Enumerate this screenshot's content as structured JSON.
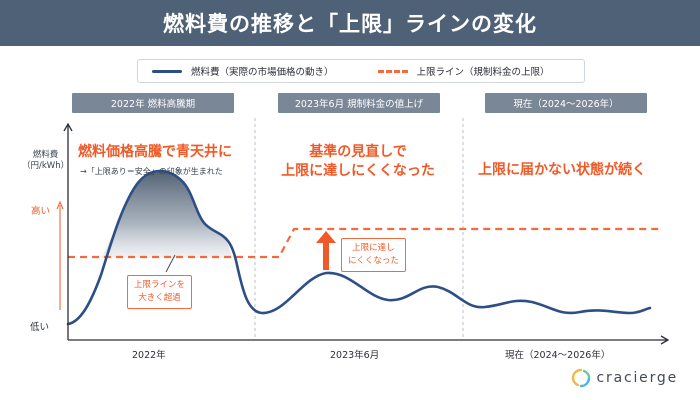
{
  "title": "燃料費の推移と「上限」ラインの変化",
  "legend": {
    "fuel": "燃料費（実際の市場価格の動き）",
    "cap": "上限ライン（規制料金の上限）"
  },
  "periods": [
    {
      "label": "2022年 燃料高騰期"
    },
    {
      "label": "2023年6月 規制料金の値上げ"
    },
    {
      "label": "現在（2024〜2026年）"
    }
  ],
  "headlines": {
    "first": "燃料価格高騰で青天井に",
    "first_note": "→「上限あり＝安全」の印象が生まれた",
    "second_line1": "基準の見直しで",
    "second_line2": "上限に達しにくくなった",
    "third": "上限に届かない状態が続く"
  },
  "y_axis": {
    "label_line1": "燃料費",
    "label_line2": "（円/kWh）",
    "high": "高い",
    "low": "低い"
  },
  "x_axis": {
    "tick1": "2022年",
    "tick2": "2023年6月",
    "tick3": "現在（2024〜2026年）"
  },
  "callouts": {
    "exceed_line1": "上限ラインを",
    "exceed_line2": "大きく超過",
    "hard_line1": "上限に達し",
    "hard_line2": "にくくなった"
  },
  "brand": "cracierge",
  "colors": {
    "header_bg": "#4f6176",
    "fuel_line": "#2d4f86",
    "cap_line": "#f26a3d",
    "accent_text": "#f05a28",
    "period_pill": "#7a8797"
  }
}
